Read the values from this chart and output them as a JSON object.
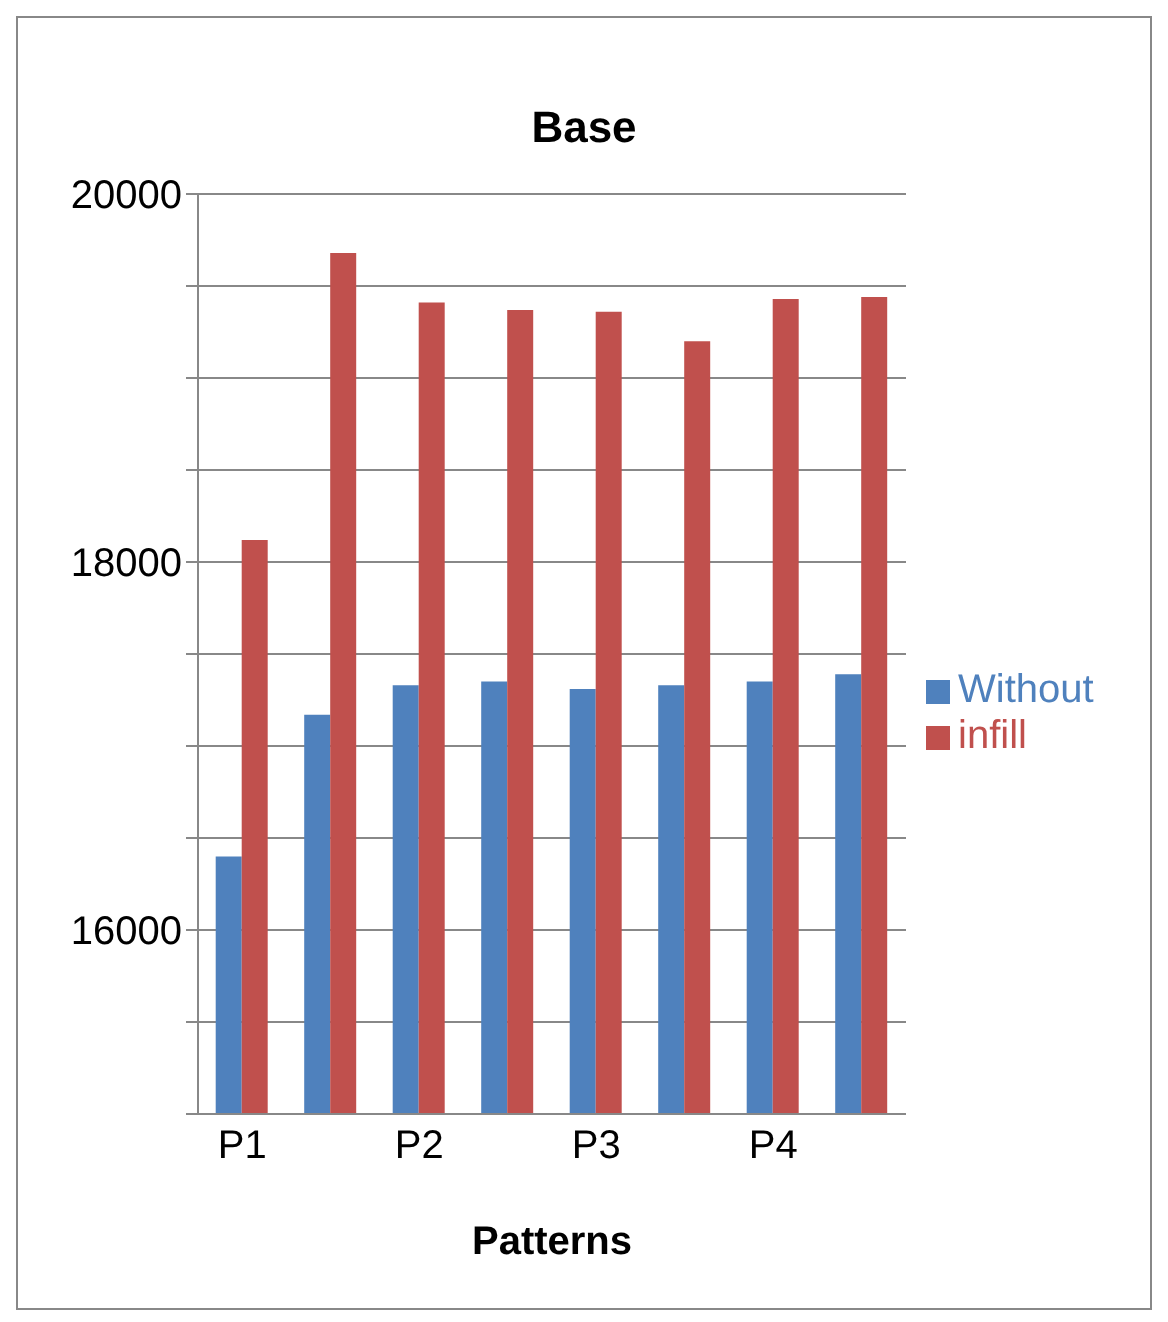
{
  "chart_data": {
    "type": "bar",
    "title": "Base",
    "xlabel": "Patterns",
    "categories": [
      "P1",
      null,
      "P2",
      null,
      "P3",
      null,
      "P4",
      null
    ],
    "series": [
      {
        "name": "Without",
        "color": "#4f81bd",
        "values": [
          16400,
          17170,
          17330,
          17350,
          17310,
          17330,
          17350,
          17390
        ]
      },
      {
        "name": "infill",
        "color": "#c0504d",
        "values": [
          18120,
          19680,
          19410,
          19370,
          19360,
          19200,
          19430,
          19440
        ]
      }
    ],
    "ylim": [
      15000,
      20000
    ],
    "yticks": [
      {
        "value": 15000,
        "label": null
      },
      {
        "value": 15500,
        "label": null
      },
      16000,
      {
        "value": 16500,
        "label": null
      },
      {
        "value": 17000,
        "label": null
      },
      {
        "value": 17500,
        "label": null
      },
      18000,
      {
        "value": 18500,
        "label": null
      },
      {
        "value": 19000,
        "label": null
      },
      {
        "value": 19500,
        "label": null
      },
      20000
    ],
    "grid": "y",
    "legend": "right"
  }
}
